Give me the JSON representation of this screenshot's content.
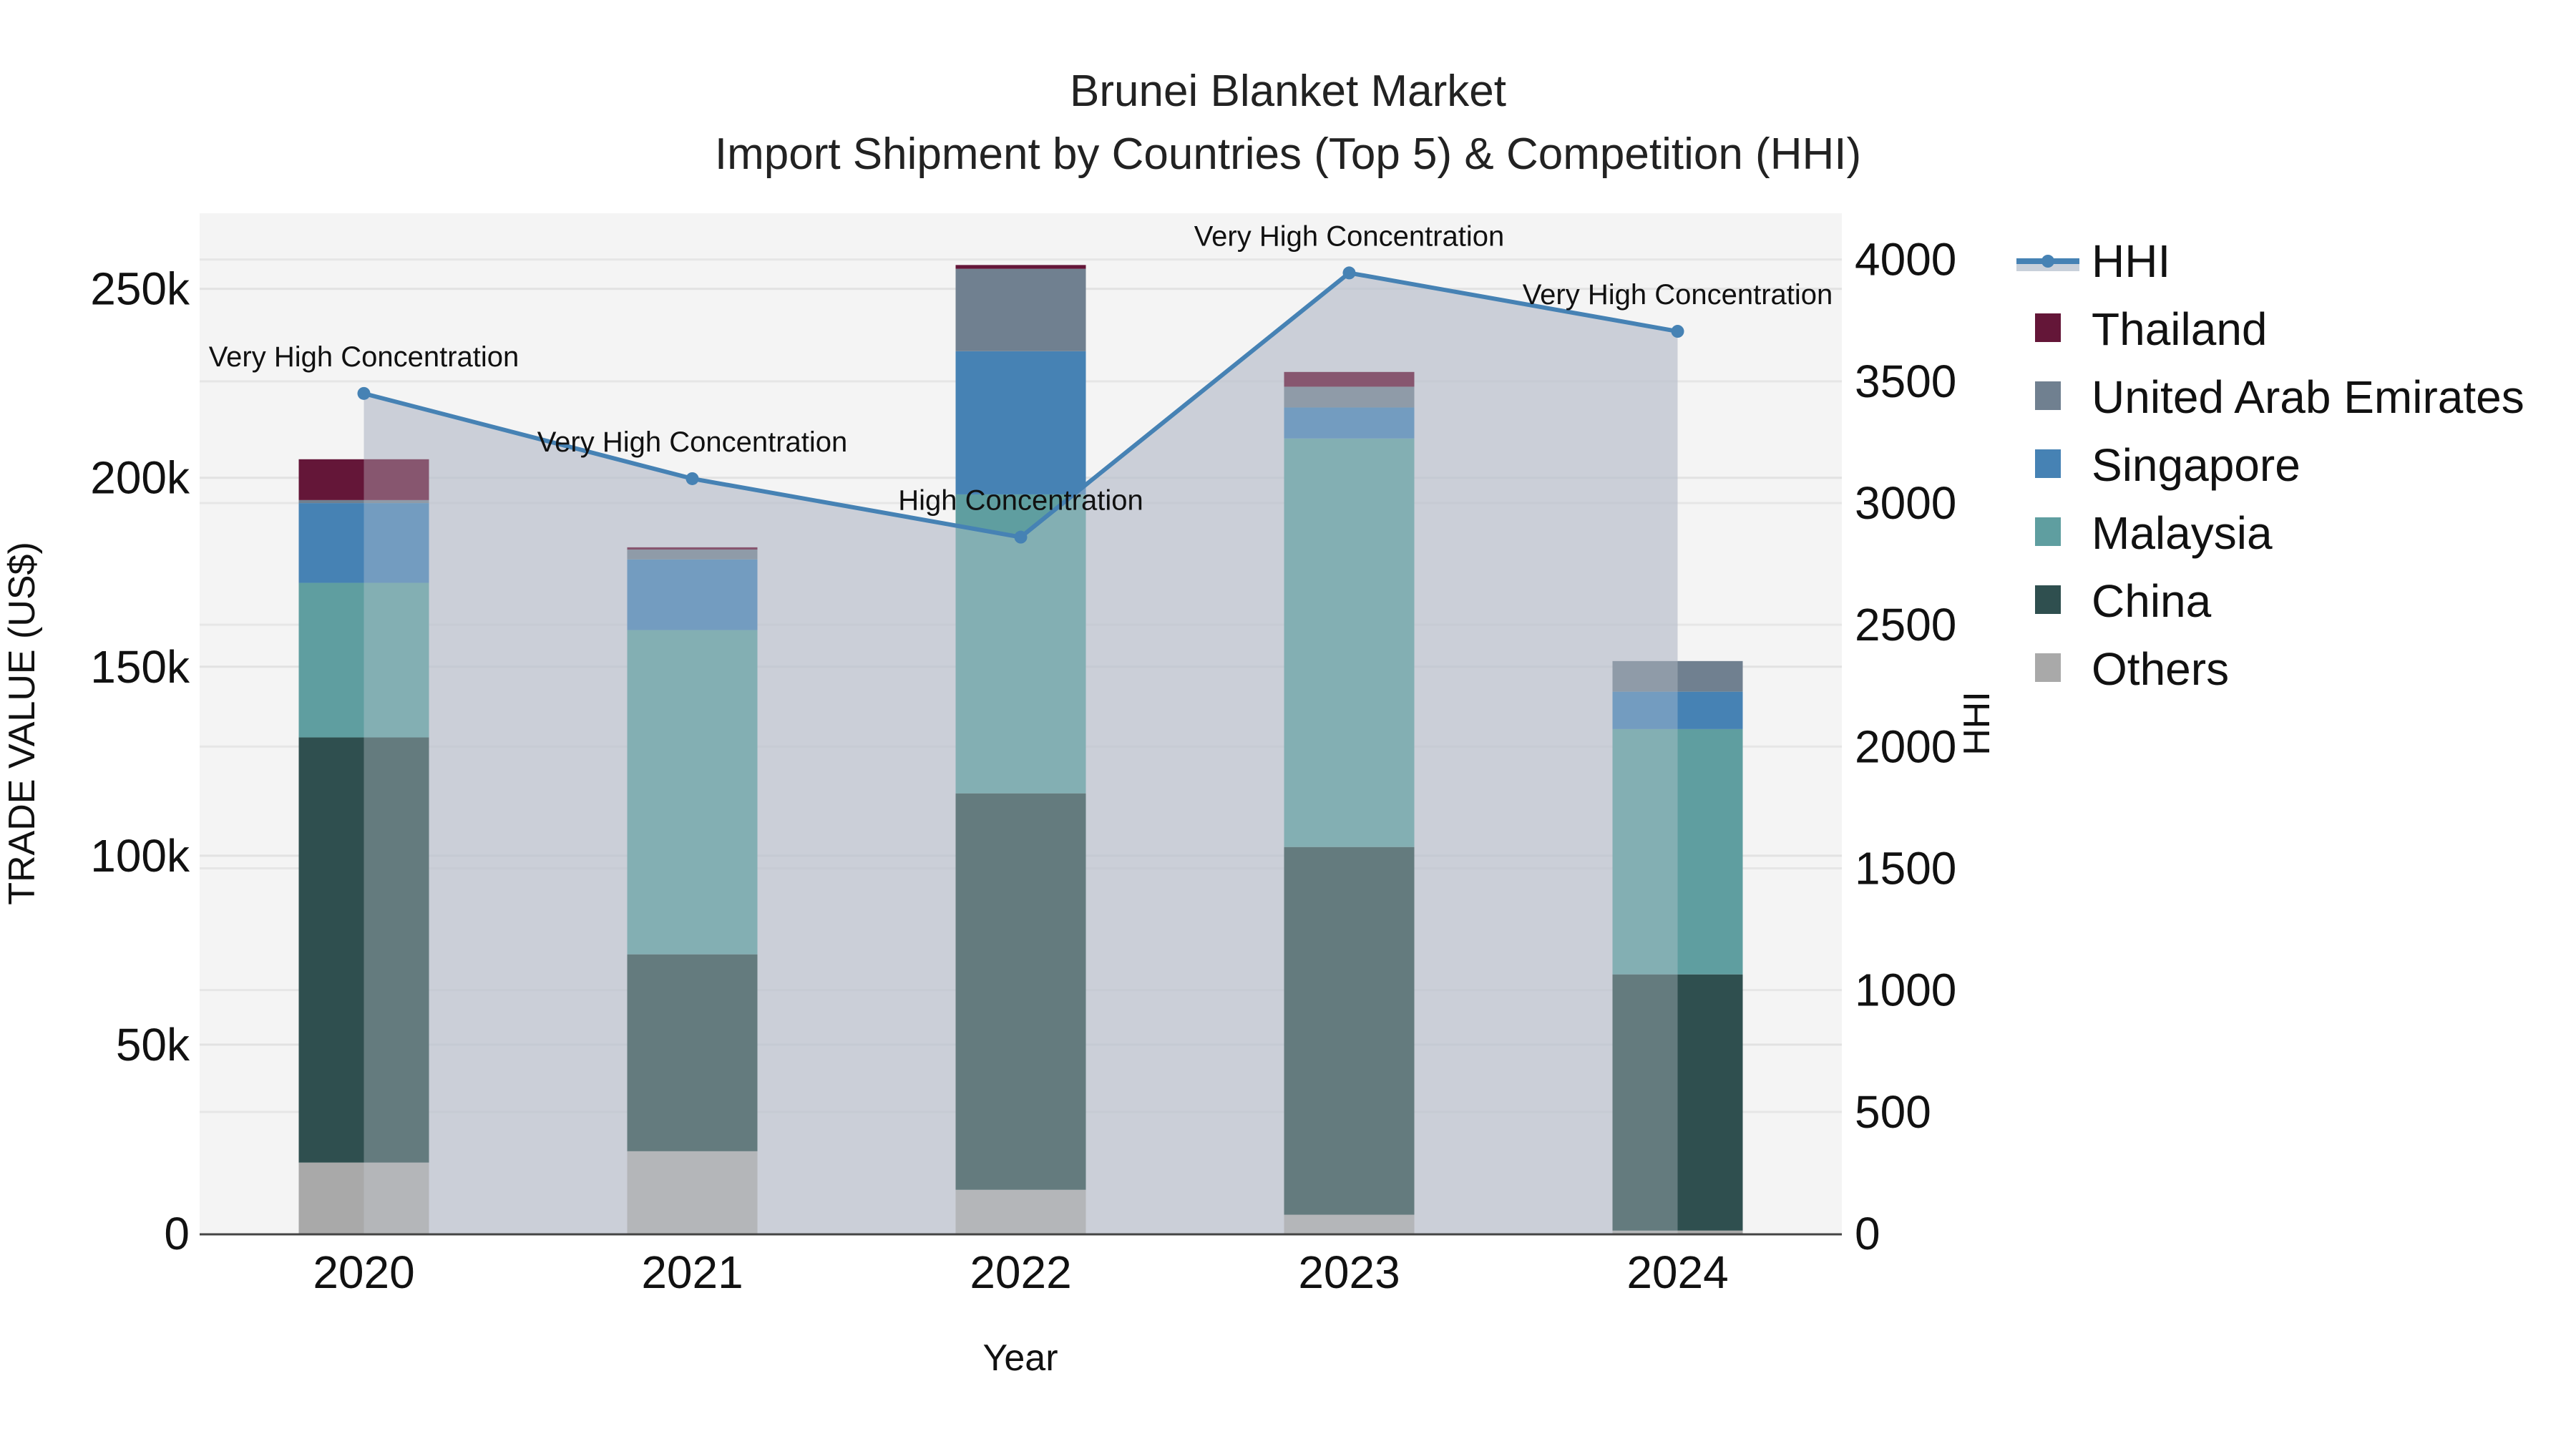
{
  "title": {
    "line1": "Brunei Blanket Market",
    "line2": "Import Shipment by Countries (Top 5) & Competition (HHI)"
  },
  "axes": {
    "x_title": "Year",
    "y_left_title": "TRADE VALUE (US$)",
    "y_right_title": "HHI",
    "y_left_ticks": [
      "0",
      "50k",
      "100k",
      "150k",
      "200k",
      "250k"
    ],
    "y_left_tick_values": [
      0,
      50000,
      100000,
      150000,
      200000,
      250000
    ],
    "y_right_ticks": [
      "0",
      "500",
      "1000",
      "1500",
      "2000",
      "2500",
      "3000",
      "3500",
      "4000"
    ],
    "y_right_tick_values": [
      0,
      500,
      1000,
      1500,
      2000,
      2500,
      3000,
      3500,
      4000
    ]
  },
  "legend": [
    {
      "name": "HHI",
      "type": "line",
      "color": "#4682B4"
    },
    {
      "name": "Thailand",
      "type": "bar",
      "color": "#641638"
    },
    {
      "name": "United Arab Emirates",
      "type": "bar",
      "color": "#708090"
    },
    {
      "name": "Singapore",
      "type": "bar",
      "color": "#4682B4"
    },
    {
      "name": "Malaysia",
      "type": "bar",
      "color": "#5F9EA0"
    },
    {
      "name": "China",
      "type": "bar",
      "color": "#2F4F4F"
    },
    {
      "name": "Others",
      "type": "bar",
      "color": "#A9A9A9"
    }
  ],
  "chart_data": {
    "type": "bar",
    "subtype": "stacked bar + line (secondary axis)",
    "title": "Brunei Blanket Market — Import Shipment by Countries (Top 5) & Competition (HHI)",
    "xlabel": "Year",
    "ylabel": "TRADE VALUE (US$)",
    "y2label": "HHI",
    "categories": [
      "2020",
      "2021",
      "2022",
      "2023",
      "2024"
    ],
    "ylim": [
      0,
      270000
    ],
    "y2lim": [
      0,
      4190
    ],
    "grid": true,
    "legend_position": "right",
    "series": [
      {
        "name": "Others",
        "axis": "y",
        "color": "#A9A9A9",
        "values": [
          18800,
          21800,
          11600,
          5000,
          800
        ]
      },
      {
        "name": "China",
        "axis": "y",
        "color": "#2F4F4F",
        "values": [
          112500,
          52100,
          104900,
          97300,
          67800
        ]
      },
      {
        "name": "Malaysia",
        "axis": "y",
        "color": "#5F9EA0",
        "values": [
          40900,
          85800,
          79100,
          108100,
          64900
        ]
      },
      {
        "name": "Singapore",
        "axis": "y",
        "color": "#4682B4",
        "values": [
          21100,
          18700,
          37900,
          8200,
          9900
        ]
      },
      {
        "name": "United Arab Emirates",
        "axis": "y",
        "color": "#708090",
        "values": [
          800,
          2600,
          21800,
          5500,
          8100
        ]
      },
      {
        "name": "Thailand",
        "axis": "y",
        "color": "#641638",
        "values": [
          10800,
          600,
          1000,
          3900,
          0
        ]
      },
      {
        "name": "HHI",
        "axis": "y2",
        "type": "line",
        "color": "#4682B4",
        "values": [
          3450,
          3100,
          2860,
          3945,
          3705
        ]
      }
    ],
    "annotations": [
      {
        "x": "2020",
        "text": "Very High Concentration"
      },
      {
        "x": "2021",
        "text": "Very High Concentration"
      },
      {
        "x": "2022",
        "text": "High Concentration"
      },
      {
        "x": "2023",
        "text": "Very High Concentration"
      },
      {
        "x": "2024",
        "text": "Very High Concentration"
      }
    ]
  }
}
